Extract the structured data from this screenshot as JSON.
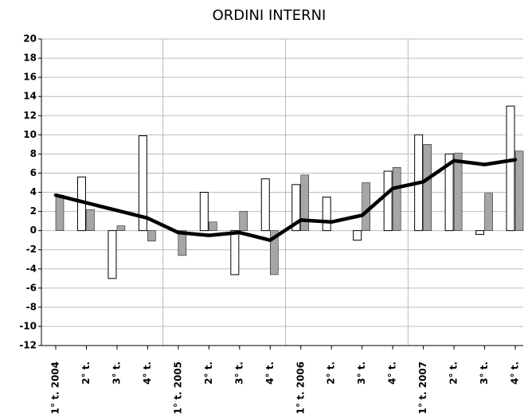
{
  "chart_data": {
    "type": "bar",
    "title": "ORDINI INTERNI",
    "categories": [
      "1° t. 2004",
      "2° t.",
      "3° t.",
      "4° t.",
      "1° t. 2005",
      "2° t.",
      "3° t.",
      "4° t.",
      "1° t. 2006",
      "2° t.",
      "3° t.",
      "4° t.",
      "1° t. 2007",
      "2° t.",
      "3° t.",
      "4° t."
    ],
    "series": [
      {
        "type": "bar",
        "color": "#ffffff",
        "values": [
          null,
          5.6,
          -5.0,
          9.9,
          null,
          4.0,
          -4.6,
          5.4,
          4.8,
          3.5,
          -1.0,
          6.2,
          10.0,
          8.0,
          -0.4,
          13.0
        ]
      },
      {
        "type": "bar",
        "color": "#a6a6a6",
        "values": [
          3.7,
          2.2,
          0.5,
          -1.1,
          -2.6,
          0.9,
          2.0,
          -4.6,
          5.8,
          null,
          5.0,
          6.6,
          9.0,
          8.1,
          3.9,
          8.3
        ]
      },
      {
        "type": "line",
        "color": "#000000",
        "values": [
          3.7,
          2.9,
          2.1,
          1.3,
          -0.2,
          -0.5,
          -0.2,
          -1.0,
          1.1,
          0.9,
          1.6,
          4.4,
          5.1,
          7.3,
          6.9,
          7.4
        ]
      }
    ],
    "ylim": [
      -12,
      20
    ],
    "yticks": [
      -12,
      -10,
      -8,
      -6,
      -4,
      -2,
      0,
      2,
      4,
      6,
      8,
      10,
      12,
      14,
      16,
      18,
      20
    ],
    "grid": true
  }
}
